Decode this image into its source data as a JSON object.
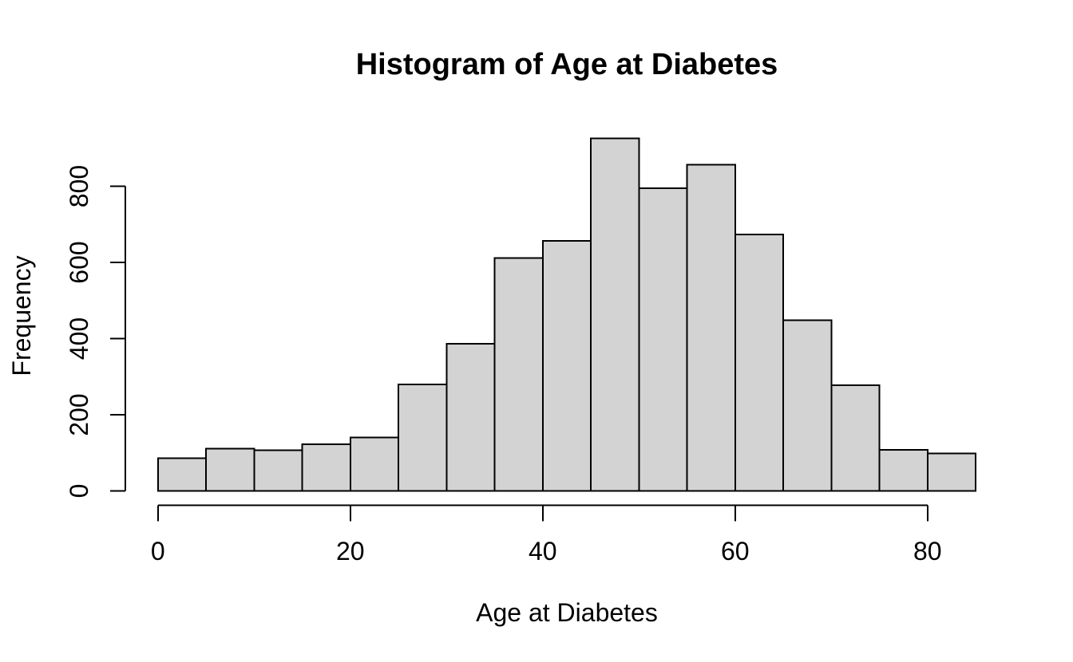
{
  "chart_data": {
    "type": "bar",
    "subtype": "histogram",
    "title": "Histogram of Age at Diabetes",
    "xlabel": "Age at Diabetes",
    "ylabel": "Frequency",
    "bin_edges": [
      0,
      5,
      10,
      15,
      20,
      25,
      30,
      35,
      40,
      45,
      50,
      55,
      60,
      65,
      70,
      75,
      80,
      85
    ],
    "categories": [
      "0-5",
      "5-10",
      "10-15",
      "15-20",
      "20-25",
      "25-30",
      "30-35",
      "35-40",
      "40-45",
      "45-50",
      "50-55",
      "55-60",
      "60-65",
      "65-70",
      "70-75",
      "75-80",
      "80-85"
    ],
    "values": [
      86,
      111,
      107,
      123,
      140,
      280,
      386,
      611,
      657,
      926,
      795,
      857,
      673,
      448,
      278,
      108,
      98
    ],
    "xticks": [
      0,
      20,
      40,
      60,
      80
    ],
    "yticks": [
      0,
      200,
      400,
      600,
      800
    ],
    "xlim": [
      0,
      85
    ],
    "ylim": [
      0,
      950
    ],
    "grid": false,
    "legend_position": "none",
    "colors": {
      "bar_fill": "#d3d3d3",
      "bar_border": "#000000",
      "axis": "#000000",
      "text": "#000000",
      "background": "#ffffff"
    }
  }
}
